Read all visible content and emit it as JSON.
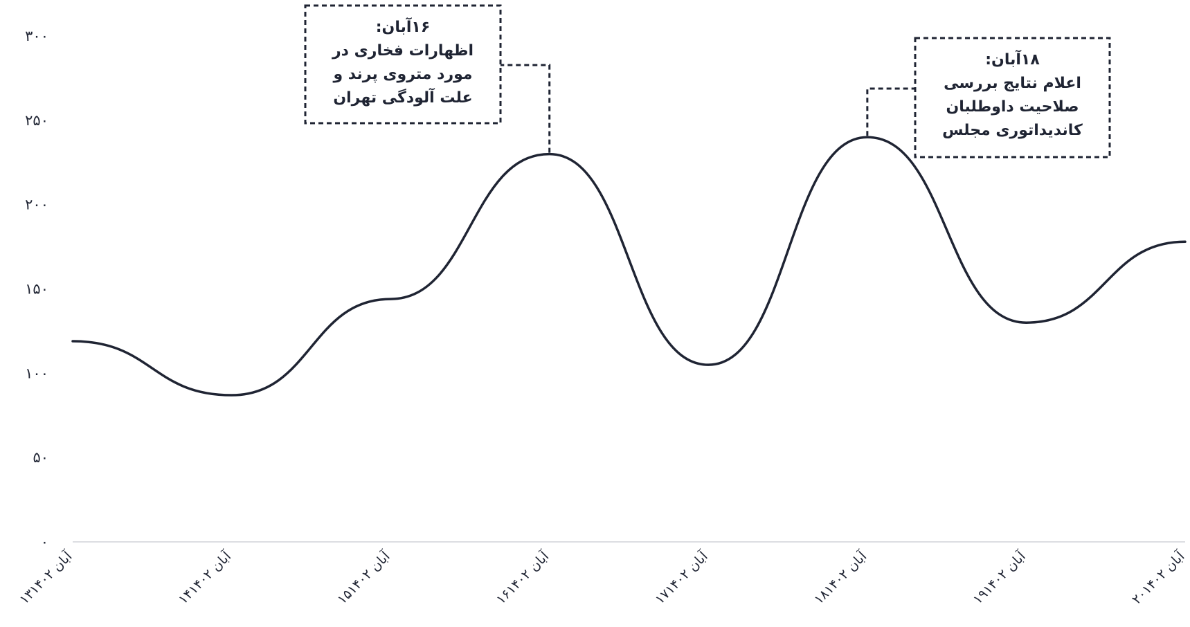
{
  "chart_data": {
    "type": "line",
    "title": "",
    "xlabel": "",
    "ylabel": "",
    "ylim": [
      0,
      300
    ],
    "yticks": [
      "۰",
      "۵۰",
      "۱۰۰",
      "۱۵۰",
      "۲۰۰",
      "۲۵۰",
      "۳۰۰"
    ],
    "categories": [
      "۱۳آبان ۱۴۰۲",
      "۱۴آبان ۱۴۰۲",
      "۱۵آبان ۱۴۰۲",
      "۱۶آبان ۱۴۰۲",
      "۱۷آبان ۱۴۰۲",
      "۱۸آبان ۱۴۰۲",
      "۱۹آبان ۱۴۰۲",
      "۲۰آبان ۱۴۰۲"
    ],
    "series": [
      {
        "values": [
          119,
          87,
          144,
          230,
          105,
          240,
          130,
          178
        ]
      }
    ],
    "grid": false,
    "legend": "none",
    "line_color": "#1f2433",
    "annotations": [
      {
        "category_index": 3,
        "lines": [
          "۱۶آبان:",
          "اظهارات فخاری در",
          "مورد متروی پرند و",
          "علت آلودگی تهران"
        ]
      },
      {
        "category_index": 5,
        "lines": [
          "۱۸آبان:",
          "اعلام نتایج بررسی",
          "صلاحیت داوطلبان",
          "کاندیداتوری مجلس"
        ]
      }
    ]
  }
}
